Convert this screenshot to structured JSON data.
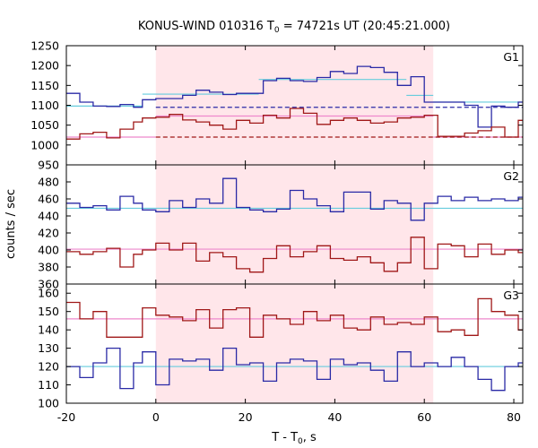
{
  "chart_data": {
    "type": "line",
    "title": {
      "prefix": "KONUS-WIND 010316 T",
      "sub": "0",
      "suffix": " = 74721s UT (20:45:21.000)"
    },
    "xlabel": {
      "prefix": "T - T",
      "sub": "0",
      "suffix": ", s"
    },
    "ylabel": "counts / sec",
    "xlim": [
      -20,
      82
    ],
    "x_ticks": [
      -20,
      0,
      20,
      40,
      60,
      80
    ],
    "shaded_interval": [
      0,
      62
    ],
    "colors": {
      "blue": "#2a2aa6",
      "red": "#a01818",
      "cyan": "#66ccdd",
      "pink": "#ee88cc",
      "shade": "#ffe6ea"
    },
    "panels": [
      {
        "label": "G1",
        "ylim": [
          950,
          1250
        ],
        "y_ticks": [
          950,
          1000,
          1050,
          1100,
          1150,
          1200,
          1250
        ],
        "series": [
          {
            "color": "blue",
            "x": [
              -20,
              -17,
              -14,
              -11,
              -8,
              -5,
              -3,
              0,
              3,
              6,
              9,
              12,
              15,
              18,
              21,
              24,
              27,
              30,
              33,
              36,
              39,
              42,
              45,
              48,
              51,
              54,
              57,
              60,
              63,
              66,
              69,
              72,
              75,
              78,
              81
            ],
            "y": [
              1130,
              1108,
              1098,
              1097,
              1102,
              1095,
              1114,
              1117,
              1117,
              1125,
              1138,
              1133,
              1127,
              1130,
              1130,
              1162,
              1168,
              1162,
              1160,
              1170,
              1185,
              1180,
              1198,
              1195,
              1183,
              1150,
              1172,
              1108,
              1108,
              1108,
              1100,
              1045,
              1098,
              1095,
              1108
            ]
          },
          {
            "color": "red",
            "x": [
              -20,
              -17,
              -14,
              -11,
              -8,
              -5,
              -3,
              0,
              3,
              6,
              9,
              12,
              15,
              18,
              21,
              24,
              27,
              30,
              33,
              36,
              39,
              42,
              45,
              48,
              51,
              54,
              57,
              60,
              63,
              66,
              69,
              72,
              75,
              78,
              81
            ],
            "y": [
              1015,
              1028,
              1032,
              1018,
              1040,
              1058,
              1068,
              1070,
              1077,
              1063,
              1058,
              1050,
              1040,
              1062,
              1055,
              1075,
              1068,
              1092,
              1080,
              1052,
              1062,
              1068,
              1062,
              1055,
              1058,
              1068,
              1070,
              1075,
              1022,
              1022,
              1030,
              1036,
              1045,
              1020,
              1062
            ]
          }
        ],
        "fits": [
          {
            "color": "cyan",
            "style": "solid",
            "segments": [
              [
                -20,
                -3,
                1098
              ],
              [
                -3,
                23,
                1128
              ],
              [
                23,
                56,
                1165
              ],
              [
                56,
                62,
                1125
              ],
              [
                62,
                82,
                1108
              ]
            ]
          },
          {
            "color": "pink",
            "style": "solid",
            "segments": [
              [
                -20,
                0,
                1020
              ],
              [
                0,
                62,
                1073
              ],
              [
                62,
                82,
                1020
              ]
            ]
          },
          {
            "color": "blue",
            "style": "dashed",
            "segments": [
              [
                0,
                82,
                1095
              ]
            ]
          },
          {
            "color": "red",
            "style": "dashed",
            "segments": [
              [
                0,
                82,
                1020
              ]
            ]
          }
        ]
      },
      {
        "label": "G2",
        "ylim": [
          360,
          500
        ],
        "y_ticks": [
          360,
          380,
          400,
          420,
          440,
          460,
          480
        ],
        "series": [
          {
            "color": "blue",
            "x": [
              -20,
              -17,
              -14,
              -11,
              -8,
              -5,
              -3,
              0,
              3,
              6,
              9,
              12,
              15,
              18,
              21,
              24,
              27,
              30,
              33,
              36,
              39,
              42,
              45,
              48,
              51,
              54,
              57,
              60,
              63,
              66,
              69,
              72,
              75,
              78,
              81
            ],
            "y": [
              455,
              450,
              452,
              447,
              463,
              455,
              447,
              445,
              458,
              450,
              460,
              455,
              484,
              450,
              447,
              445,
              448,
              470,
              460,
              452,
              445,
              468,
              468,
              448,
              458,
              455,
              435,
              455,
              463,
              458,
              462,
              458,
              460,
              458,
              462
            ]
          },
          {
            "color": "red",
            "x": [
              -20,
              -17,
              -14,
              -11,
              -8,
              -5,
              -3,
              0,
              3,
              6,
              9,
              12,
              15,
              18,
              21,
              24,
              27,
              30,
              33,
              36,
              39,
              42,
              45,
              48,
              51,
              54,
              57,
              60,
              63,
              66,
              69,
              72,
              75,
              78,
              81
            ],
            "y": [
              398,
              395,
              398,
              402,
              380,
              395,
              400,
              408,
              400,
              408,
              387,
              397,
              392,
              378,
              374,
              390,
              405,
              392,
              398,
              405,
              390,
              388,
              392,
              385,
              375,
              385,
              415,
              378,
              407,
              405,
              392,
              407,
              395,
              400,
              397
            ]
          }
        ],
        "fits": [
          {
            "color": "cyan",
            "style": "solid",
            "segments": [
              [
                -20,
                82,
                449
              ]
            ]
          },
          {
            "color": "pink",
            "style": "solid",
            "segments": [
              [
                -20,
                82,
                401
              ]
            ]
          }
        ]
      },
      {
        "label": "G3",
        "ylim": [
          100,
          165
        ],
        "y_ticks": [
          100,
          110,
          120,
          130,
          140,
          150,
          160
        ],
        "series": [
          {
            "color": "blue",
            "x": [
              -20,
              -17,
              -14,
              -11,
              -8,
              -5,
              -3,
              0,
              3,
              6,
              9,
              12,
              15,
              18,
              21,
              24,
              27,
              30,
              33,
              36,
              39,
              42,
              45,
              48,
              51,
              54,
              57,
              60,
              63,
              66,
              69,
              72,
              75,
              78,
              81
            ],
            "y": [
              120,
              114,
              122,
              130,
              108,
              122,
              128,
              110,
              124,
              123,
              124,
              118,
              130,
              121,
              122,
              112,
              122,
              124,
              123,
              113,
              124,
              121,
              122,
              118,
              112,
              128,
              120,
              122,
              120,
              125,
              120,
              113,
              107,
              120,
              122
            ]
          },
          {
            "color": "red",
            "x": [
              -20,
              -17,
              -14,
              -11,
              -8,
              -5,
              -3,
              0,
              3,
              6,
              9,
              12,
              15,
              18,
              21,
              24,
              27,
              30,
              33,
              36,
              39,
              42,
              45,
              48,
              51,
              54,
              57,
              60,
              63,
              66,
              69,
              72,
              75,
              78,
              81
            ],
            "y": [
              155,
              146,
              150,
              136,
              136,
              136,
              152,
              148,
              147,
              145,
              151,
              141,
              151,
              152,
              136,
              148,
              146,
              143,
              150,
              145,
              148,
              141,
              140,
              147,
              143,
              144,
              143,
              147,
              139,
              140,
              137,
              157,
              150,
              148,
              140
            ]
          }
        ],
        "fits": [
          {
            "color": "cyan",
            "style": "solid",
            "segments": [
              [
                -20,
                82,
                120
              ]
            ]
          },
          {
            "color": "pink",
            "style": "solid",
            "segments": [
              [
                -20,
                82,
                146
              ]
            ]
          }
        ]
      }
    ]
  }
}
